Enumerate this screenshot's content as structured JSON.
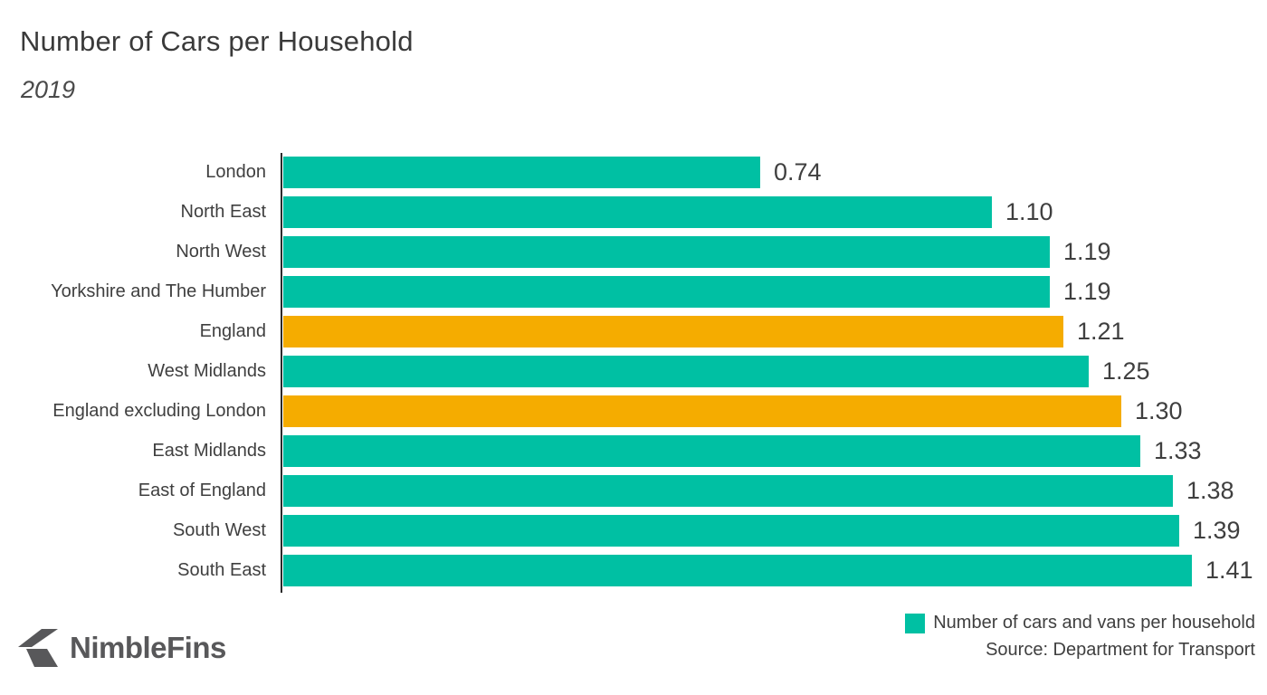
{
  "header": {
    "title": "Number of Cars per Household",
    "subtitle": "2019"
  },
  "chart_data": {
    "type": "bar",
    "orientation": "horizontal",
    "title": "Number of Cars per Household",
    "subtitle": "2019",
    "categories": [
      "London",
      "North East",
      "North West",
      "Yorkshire and The Humber",
      "England",
      "West Midlands",
      "England excluding London",
      "East Midlands",
      "East of England",
      "South West",
      "South East"
    ],
    "values": [
      0.74,
      1.1,
      1.19,
      1.19,
      1.21,
      1.25,
      1.3,
      1.33,
      1.38,
      1.39,
      1.41
    ],
    "value_labels": [
      "0.74",
      "1.10",
      "1.19",
      "1.19",
      "1.21",
      "1.25",
      "1.30",
      "1.33",
      "1.38",
      "1.39",
      "1.41"
    ],
    "highlighted": [
      false,
      false,
      false,
      false,
      true,
      false,
      true,
      false,
      false,
      false,
      false
    ],
    "xlim": [
      0,
      1.41
    ],
    "grid": false,
    "legend": {
      "label": "Number of cars and vans per household",
      "swatch_color": "#00c0a3",
      "position": "bottom-right"
    },
    "source": "Source: Department for Transport",
    "colors": {
      "bar": "#00c0a3",
      "highlight": "#f5ac00",
      "axis": "#2b2b2b",
      "text": "#3f3f3f"
    }
  },
  "footer": {
    "brand": "NimbleFins",
    "brand_color": "#58585a"
  }
}
